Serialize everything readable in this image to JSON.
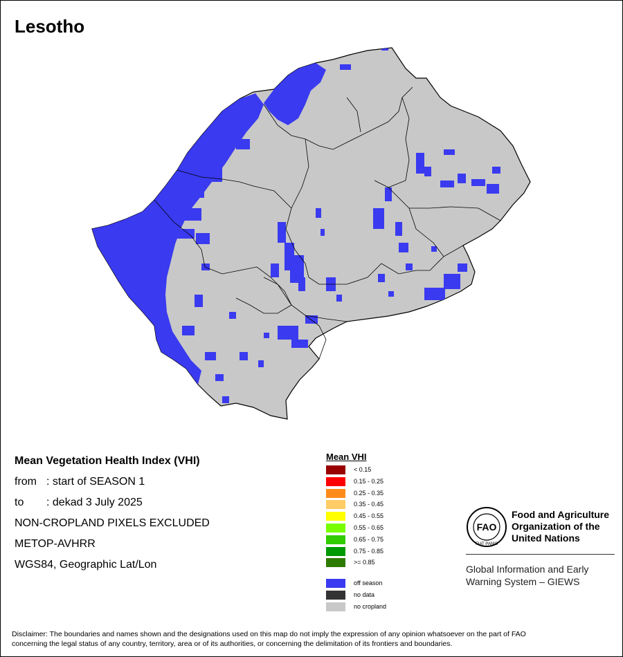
{
  "map": {
    "title": "Lesotho",
    "colors": {
      "non_cropland": "#c8c8c8",
      "off_season": "#3a3af0",
      "boundary": "#000000"
    }
  },
  "info": {
    "title": "Mean Vegetation Health Index (VHI)",
    "from_key": "from",
    "from_value": ": start of SEASON 1",
    "to_key": "to",
    "to_value": ": dekad 3 July 2025",
    "line3": "NON-CROPLAND PIXELS EXCLUDED",
    "line4": "METOP-AVHRR",
    "line5": "WGS84, Geographic Lat/Lon"
  },
  "legend": {
    "title": "Mean VHI",
    "classes": [
      {
        "label": "< 0.15",
        "color": "#990000"
      },
      {
        "label": "0.15 - 0.25",
        "color": "#ff0000"
      },
      {
        "label": "0.25 - 0.35",
        "color": "#ff8c1a"
      },
      {
        "label": "0.35 - 0.45",
        "color": "#ffcc66"
      },
      {
        "label": "0.45 - 0.55",
        "color": "#ffff00"
      },
      {
        "label": "0.55 - 0.65",
        "color": "#77ff00"
      },
      {
        "label": "0.65 - 0.75",
        "color": "#33cc00"
      },
      {
        "label": "0.75 - 0.85",
        "color": "#009900"
      },
      {
        "label": ">= 0.85",
        "color": "#2d7a00"
      }
    ],
    "extra": [
      {
        "label": "off season",
        "color": "#3a3af0"
      },
      {
        "label": "no data",
        "color": "#333333"
      },
      {
        "label": "no cropland",
        "color": "#c8c8c8"
      }
    ]
  },
  "fao": {
    "org_line1": "Food and Agriculture",
    "org_line2": "Organization of the",
    "org_line3": "United Nations",
    "giews_line1": "Global Information and Early",
    "giews_line2": "Warning System – GIEWS",
    "logo_text": "FAO",
    "logo_motto": "FIAT PANIS"
  },
  "disclaimer": {
    "line1": "Disclaimer: The boundaries and names shown and the designations used on this map do not imply the expression of any opinion whatsoever on the part of FAO",
    "line2": "concerning the legal status of any country, territory, area or of its authorities, or concerning the delimitation of its frontiers and boundaries."
  }
}
